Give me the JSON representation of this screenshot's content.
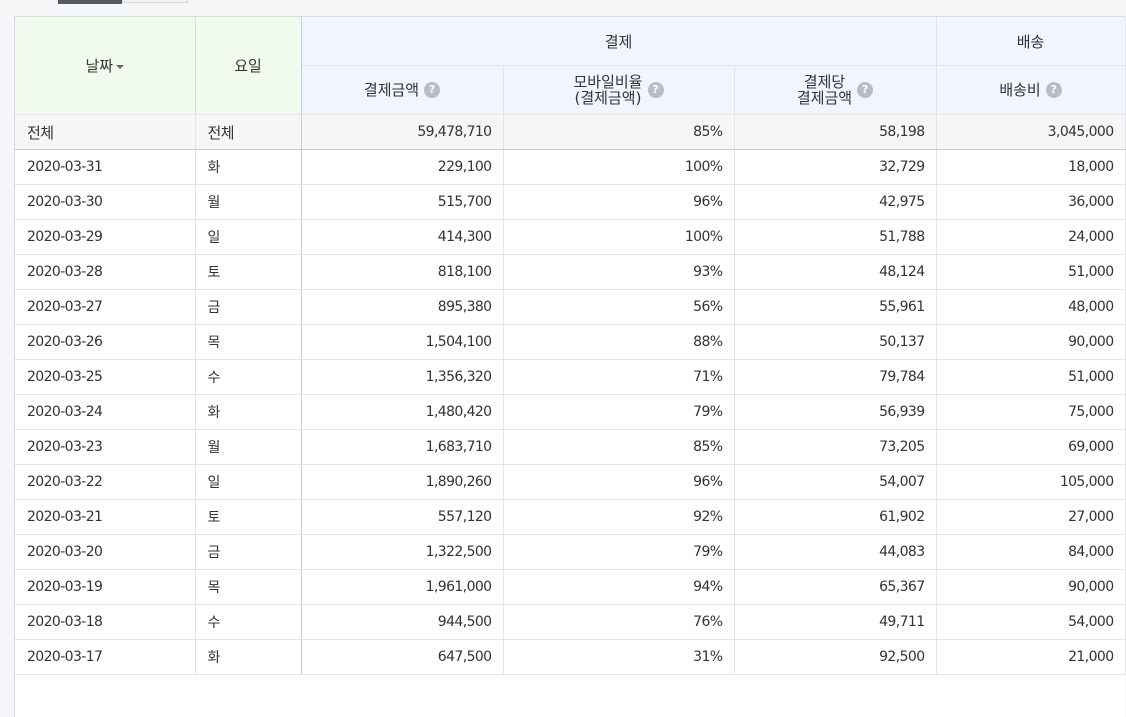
{
  "header": {
    "date_label": "날짜",
    "day_label": "요일",
    "group_payment": "결제",
    "group_shipping": "배송",
    "col_amount": "결제금액",
    "col_mobile_line1": "모바일비율",
    "col_mobile_line2": "(결제금액)",
    "col_per_line1": "결제당",
    "col_per_line2": "결제금액",
    "col_shipping": "배송비",
    "help_glyph": "?"
  },
  "total": {
    "date": "전체",
    "day": "전체",
    "amount": "59,478,710",
    "mobile": "85%",
    "per": "58,198",
    "shipping": "3,045,000"
  },
  "rows": [
    {
      "date": "2020-03-31",
      "day": "화",
      "amount": "229,100",
      "mobile": "100%",
      "per": "32,729",
      "shipping": "18,000"
    },
    {
      "date": "2020-03-30",
      "day": "월",
      "amount": "515,700",
      "mobile": "96%",
      "per": "42,975",
      "shipping": "36,000"
    },
    {
      "date": "2020-03-29",
      "day": "일",
      "amount": "414,300",
      "mobile": "100%",
      "per": "51,788",
      "shipping": "24,000"
    },
    {
      "date": "2020-03-28",
      "day": "토",
      "amount": "818,100",
      "mobile": "93%",
      "per": "48,124",
      "shipping": "51,000"
    },
    {
      "date": "2020-03-27",
      "day": "금",
      "amount": "895,380",
      "mobile": "56%",
      "per": "55,961",
      "shipping": "48,000"
    },
    {
      "date": "2020-03-26",
      "day": "목",
      "amount": "1,504,100",
      "mobile": "88%",
      "per": "50,137",
      "shipping": "90,000"
    },
    {
      "date": "2020-03-25",
      "day": "수",
      "amount": "1,356,320",
      "mobile": "71%",
      "per": "79,784",
      "shipping": "51,000"
    },
    {
      "date": "2020-03-24",
      "day": "화",
      "amount": "1,480,420",
      "mobile": "79%",
      "per": "56,939",
      "shipping": "75,000"
    },
    {
      "date": "2020-03-23",
      "day": "월",
      "amount": "1,683,710",
      "mobile": "85%",
      "per": "73,205",
      "shipping": "69,000"
    },
    {
      "date": "2020-03-22",
      "day": "일",
      "amount": "1,890,260",
      "mobile": "96%",
      "per": "54,007",
      "shipping": "105,000"
    },
    {
      "date": "2020-03-21",
      "day": "토",
      "amount": "557,120",
      "mobile": "92%",
      "per": "61,902",
      "shipping": "27,000"
    },
    {
      "date": "2020-03-20",
      "day": "금",
      "amount": "1,322,500",
      "mobile": "79%",
      "per": "44,083",
      "shipping": "84,000"
    },
    {
      "date": "2020-03-19",
      "day": "목",
      "amount": "1,961,000",
      "mobile": "94%",
      "per": "65,367",
      "shipping": "90,000"
    },
    {
      "date": "2020-03-18",
      "day": "수",
      "amount": "944,500",
      "mobile": "76%",
      "per": "49,711",
      "shipping": "54,000"
    },
    {
      "date": "2020-03-17",
      "day": "화",
      "amount": "647,500",
      "mobile": "31%",
      "per": "92,500",
      "shipping": "21,000"
    }
  ]
}
